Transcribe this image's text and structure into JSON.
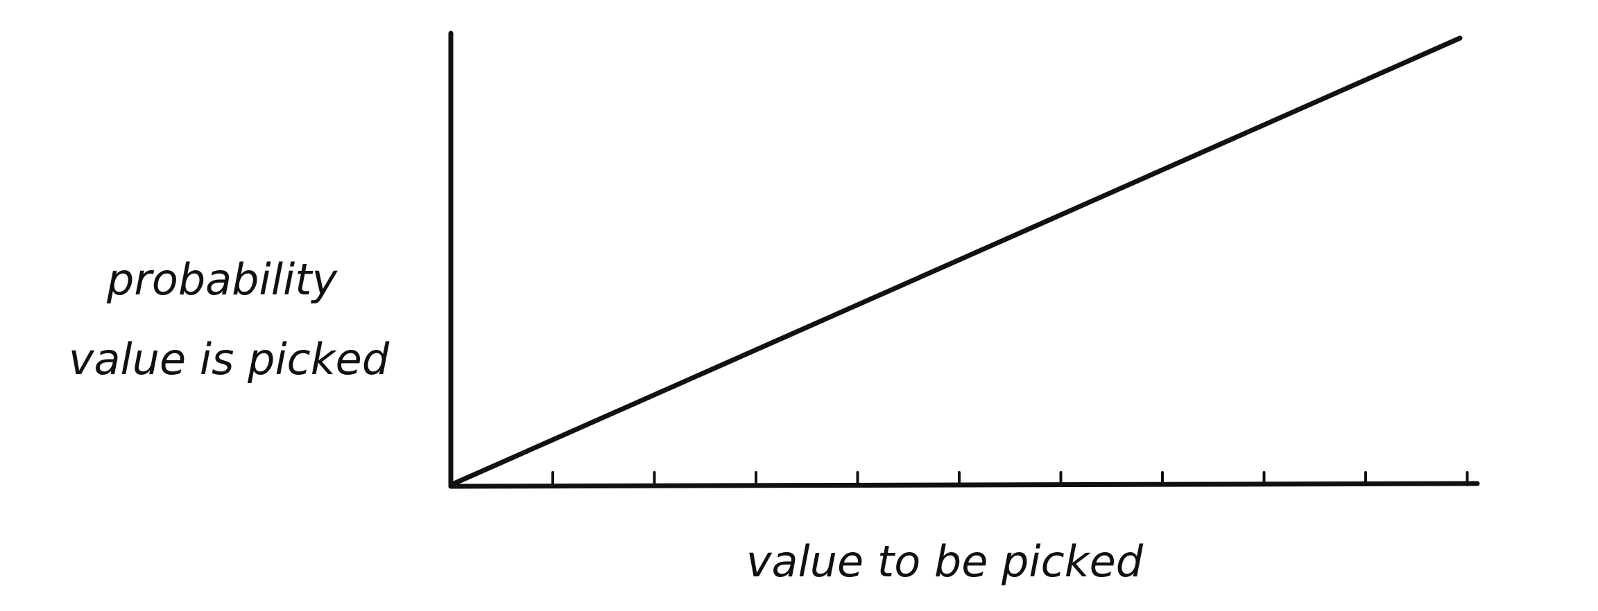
{
  "chart_data": {
    "type": "line",
    "xlabel": "value to be picked",
    "ylabel_lines": [
      "probability",
      "value is picked"
    ],
    "x_tick_count": 10,
    "x_tick_labels": [],
    "y_tick_labels": [],
    "xlim": [
      0,
      1
    ],
    "ylim": [
      0,
      1
    ],
    "grid": false,
    "series": [
      {
        "x": [
          0,
          1
        ],
        "y": [
          0,
          1
        ]
      }
    ]
  }
}
